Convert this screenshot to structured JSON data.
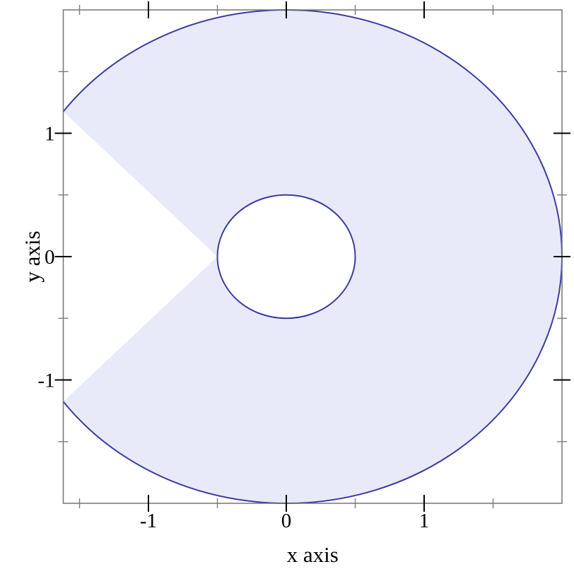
{
  "chart_data": {
    "type": "area",
    "subtype": "parametric-polar-region",
    "title": "",
    "xlabel": "x axis",
    "ylabel": "y axis",
    "xlim": [
      -1.618,
      2
    ],
    "ylim": [
      -2,
      2
    ],
    "grid": false,
    "legend": "none",
    "x_ticks_major": [
      {
        "value": -1,
        "label": "-1"
      },
      {
        "value": 0,
        "label": "0"
      },
      {
        "value": 1,
        "label": "1"
      }
    ],
    "x_ticks_minor": [
      -1.5,
      -0.5,
      0.5,
      1.5
    ],
    "y_ticks_major": [
      {
        "value": 1,
        "label": "1"
      },
      {
        "value": 0,
        "label": "0"
      },
      {
        "value": -1,
        "label": "-1"
      }
    ],
    "y_ticks_minor": [
      1.5,
      0.5,
      -0.5,
      -1.5
    ],
    "region": {
      "outer_radius": 2,
      "outer_arc_deg": [
        -144,
        144
      ],
      "inner_radius": 0.5,
      "inner_circle_full": true,
      "wedge_apex": [
        -0.5,
        0
      ],
      "wedge_edges_stroked": false
    },
    "colors": {
      "region_fill": "#e8eaf9",
      "region_stroke": "#3c3ca0",
      "plot_border": "#757575",
      "tick_major": "#000000",
      "tick_minor": "#7d7d7d",
      "label_text": "#000000"
    }
  }
}
